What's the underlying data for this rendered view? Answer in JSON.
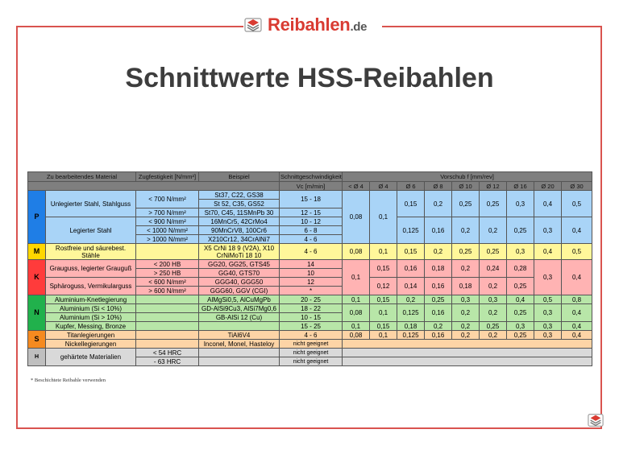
{
  "logo": {
    "brand": "Reibahlen",
    "domain": ".de"
  },
  "title": "Schnittwerte HSS-Reibahlen",
  "header": {
    "material": "Zu bearbeitendes Material",
    "tensile": "Zugfestigkeit  [N/mm²]",
    "example": "Beispiel",
    "speed": "Schnittgeschwindigkeit",
    "speed_unit": "Vc [m/min]",
    "feed": "Vorschub f  [mm/rev]",
    "diameters": [
      "< Ø 4",
      "Ø 4",
      "Ø 6",
      "Ø 8",
      "Ø 10",
      "Ø 12",
      "Ø 16",
      "Ø 20",
      "Ø 30"
    ]
  },
  "groups": {
    "P": "P",
    "M": "M",
    "K": "K",
    "N": "N",
    "S": "S",
    "H": "H"
  },
  "materials": {
    "p1": "Unlegierter Stahl, Stahlguss",
    "p2": "Legierter Stahl",
    "m1": "Rostfreie und säurebest. Stähle",
    "k1": "Grauguss, legierter Grauguß",
    "k2": "Sphäroguss, Vermikularguss",
    "n1": "Aluminium-Knetlegierung",
    "n2": "Aluminium (Si < 10%)",
    "n3": "Aluminium (Si > 10%)",
    "n4": "Kupfer, Messing, Bronze",
    "s1": "Titanlegierungen",
    "s2": "Nickellegierungen",
    "h1": "gehärtete Materialien"
  },
  "tensile": {
    "p1": "< 700 N/mm²",
    "p2": "> 700 N/mm²",
    "p3": "< 900 N/mm²",
    "p4": "< 1000 N/mm²",
    "p5": "> 1000 N/mm²",
    "k1": "< 200 HB",
    "k2": "> 250 HB",
    "k3": "< 600 N/mm²",
    "k4": "> 600 N/mm²",
    "h1": "< 54 HRC",
    "h2": "- 63 HRC"
  },
  "examples": {
    "p1": "St37, C22, GS38",
    "p2": "St 52, C35, GS52",
    "p3": "St70, C45, 11SMnPb 30",
    "p4": "16MnCr5, 42CrMo4",
    "p5": "90MnCrV8, 100Cr6",
    "p6": "X210Cr12, 34CrAlNi7",
    "m1": "X5 CrNi 18 9 (V2A), X10 CrNiMoTi 18 10",
    "k1": "GG20, GG25, GTS45",
    "k2": "GG40, GTS70",
    "k3": "GGG40, GGG50",
    "k4": "GGG60, GGV (CGI)",
    "n1": "AlMgSi0,5, AlCuMgPb",
    "n2": "GD-AlSi9Cu3, AlSi7Mg0,6",
    "n3": "GB-AlSi 12 (Cu)",
    "s1": "TiAl6V4",
    "s2": "Inconel, Monel, Hasteloy"
  },
  "speeds": {
    "p1": "15 - 18",
    "p2": "12 - 15",
    "p3": "10 - 12",
    "p4": "6 - 8",
    "p5": "4 - 6",
    "m1": "4 - 6",
    "k1": "14",
    "k2": "10",
    "k3": "12",
    "k4": "*",
    "n1": "20 - 25",
    "n2": "18 - 22",
    "n3": "10 - 15",
    "n4": "15 - 25",
    "s1": "4 - 6",
    "s2": "nicht geeignet",
    "h1": "nicht geeignet",
    "h2": "nicht geeignet"
  },
  "feeds": {
    "p_lt4": "0,08",
    "p_4": "0,1",
    "p1": [
      "0,15",
      "0,2",
      "0,25",
      "0,25",
      "0,3",
      "0,4",
      "0,5"
    ],
    "p2": [
      "0,125",
      "0,16",
      "0,2",
      "0,2",
      "0,25",
      "0,3",
      "0,4"
    ],
    "m1": [
      "0,08",
      "0,1",
      "0,15",
      "0,2",
      "0,25",
      "0,25",
      "0,3",
      "0,4",
      "0,5"
    ],
    "k_lt4": "0,1",
    "k1": [
      "0,15",
      "0,16",
      "0,18",
      "0,2",
      "0,24",
      "0,28"
    ],
    "k2": [
      "0,12",
      "0,14",
      "0,16",
      "0,18",
      "0,2",
      "0,25"
    ],
    "k_20": "0,3",
    "k_30": "0,4",
    "n1": [
      "0,1",
      "0,15",
      "0,2",
      "0,25",
      "0,3",
      "0,3",
      "0,4",
      "0,5",
      "0,8"
    ],
    "n23": [
      "0,08",
      "0,1",
      "0,125",
      "0,16",
      "0,2",
      "0,2",
      "0,25",
      "0,3",
      "0,4"
    ],
    "n4": [
      "0,1",
      "0,15",
      "0,18",
      "0,2",
      "0,2",
      "0,25",
      "0,3",
      "0,3",
      "0,4"
    ],
    "s1": [
      "0,08",
      "0,1",
      "0,125",
      "0,16",
      "0,2",
      "0,2",
      "0,25",
      "0,3",
      "0,4"
    ]
  },
  "note": "*  Beschichtete Reibahle verwenden"
}
